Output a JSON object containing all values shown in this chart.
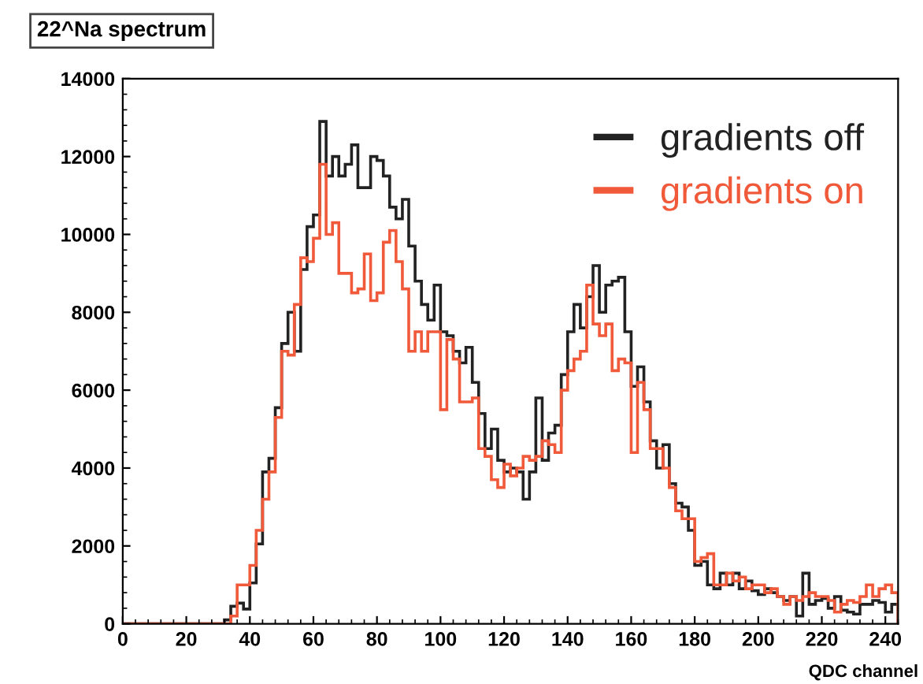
{
  "chart_data": {
    "type": "histogram",
    "title": "22^Na spectrum",
    "xlabel": "QDC channel",
    "bins": [
      0,
      2,
      4,
      6,
      8,
      10,
      12,
      14,
      16,
      18,
      20,
      22,
      24,
      26,
      28,
      30,
      32,
      34,
      36,
      38,
      40,
      42,
      44,
      46,
      48,
      50,
      52,
      54,
      56,
      58,
      60,
      62,
      64,
      66,
      68,
      70,
      72,
      74,
      76,
      78,
      80,
      82,
      84,
      86,
      88,
      90,
      92,
      94,
      96,
      98,
      100,
      102,
      104,
      106,
      108,
      110,
      112,
      114,
      116,
      118,
      120,
      122,
      124,
      126,
      128,
      130,
      132,
      134,
      136,
      138,
      140,
      142,
      144,
      146,
      148,
      150,
      152,
      154,
      156,
      158,
      160,
      162,
      164,
      166,
      168,
      170,
      172,
      174,
      176,
      178,
      180,
      182,
      184,
      186,
      188,
      190,
      192,
      194,
      196,
      198,
      200,
      202,
      204,
      206,
      208,
      210,
      212,
      214,
      216,
      218,
      220,
      222,
      224,
      226,
      228,
      230,
      232,
      234,
      236,
      238,
      240,
      242,
      244
    ],
    "series": [
      {
        "name": "gradients off",
        "color": "#222222",
        "values": [
          0,
          0,
          0,
          0,
          0,
          0,
          0,
          0,
          0,
          0,
          0,
          0,
          0,
          0,
          0,
          0,
          100,
          450,
          530,
          380,
          1050,
          2050,
          3900,
          4250,
          5550,
          7200,
          8000,
          7000,
          9100,
          10200,
          10500,
          12900,
          11500,
          12000,
          11500,
          11800,
          12300,
          11200,
          11200,
          12000,
          11900,
          11500,
          10700,
          10400,
          10900,
          9700,
          8800,
          8200,
          7800,
          8700,
          7500,
          7400,
          7000,
          6700,
          7100,
          6200,
          5400,
          4500,
          5000,
          4200,
          3900,
          4000,
          3900,
          3200,
          3900,
          5800,
          4200,
          4900,
          5100,
          6400,
          7500,
          8200,
          7600,
          8400,
          9200,
          8000,
          8700,
          8800,
          8900,
          7500,
          6100,
          6600,
          5700,
          4700,
          4000,
          4600,
          3600,
          3100,
          3000,
          2400,
          1500,
          1600,
          1000,
          900,
          1300,
          1000,
          1300,
          900,
          1100,
          850,
          750,
          900,
          800,
          700,
          600,
          700,
          200,
          1300,
          500,
          600,
          650,
          400,
          700,
          350,
          300,
          250,
          500,
          500,
          600,
          550,
          300,
          500
        ]
      },
      {
        "name": "gradients on",
        "color": "#f05a3a",
        "values": [
          0,
          0,
          0,
          0,
          0,
          0,
          0,
          0,
          0,
          0,
          0,
          0,
          0,
          0,
          0,
          0,
          0,
          200,
          1000,
          1000,
          1500,
          2400,
          3200,
          3900,
          5300,
          7000,
          6900,
          8200,
          9400,
          9300,
          9900,
          11800,
          10000,
          10300,
          9000,
          9000,
          8500,
          8600,
          9500,
          8300,
          8500,
          9800,
          10100,
          9300,
          8600,
          7000,
          7500,
          7000,
          7500,
          7500,
          5500,
          7300,
          6800,
          5700,
          5700,
          5800,
          4500,
          4300,
          3700,
          3500,
          4100,
          3800,
          4000,
          4300,
          4200,
          4300,
          4700,
          4600,
          4400,
          6000,
          6500,
          6800,
          7000,
          8700,
          7700,
          7400,
          7700,
          6500,
          6800,
          6700,
          4400,
          6200,
          5500,
          4500,
          4500,
          4000,
          3500,
          2900,
          2700,
          2700,
          1600,
          1700,
          1800,
          1000,
          1000,
          1300,
          1100,
          1200,
          900,
          1000,
          1000,
          800,
          900,
          700,
          500,
          700,
          600,
          700,
          800,
          700,
          700,
          600,
          300,
          500,
          600,
          550,
          700,
          1000,
          700,
          900,
          1000,
          800
        ]
      }
    ],
    "xlim": [
      0,
      244
    ],
    "xticks": [
      0,
      20,
      40,
      60,
      80,
      100,
      120,
      140,
      160,
      180,
      200,
      220,
      240
    ],
    "ylim": [
      0,
      14000
    ],
    "yticks": [
      0,
      2000,
      4000,
      6000,
      8000,
      10000,
      12000,
      14000
    ],
    "grid": false,
    "legend": "top right"
  }
}
